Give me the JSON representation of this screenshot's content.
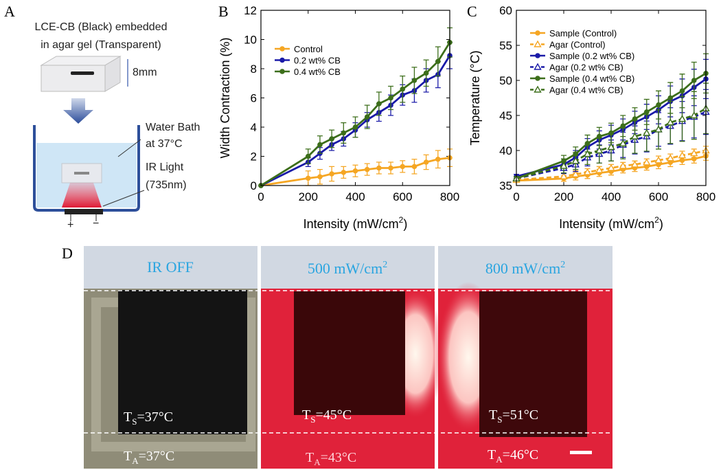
{
  "panel_labels": [
    "A",
    "B",
    "C",
    "D"
  ],
  "schematic": {
    "caption_1": "LCE-CB (Black) embedded",
    "caption_2": "in agar gel (Transparent)",
    "thickness": "8mm",
    "bath_1": "Water Bath",
    "bath_2": "at 37°C",
    "light_1": "IR Light",
    "light_2": "(735nm)",
    "plus": "+",
    "minus": "−"
  },
  "chart_data": [
    {
      "type": "line",
      "ylabel": "Width Contraction (%)",
      "xlabel": {
        "text": "Intensity (mW/cm",
        "sup": "2",
        "end": ")"
      },
      "x": [
        0,
        200,
        250,
        300,
        350,
        400,
        450,
        500,
        550,
        600,
        650,
        700,
        750,
        800
      ],
      "xlim": [
        0,
        800
      ],
      "xticks": [
        0,
        200,
        400,
        600,
        800
      ],
      "ylim": [
        0,
        12
      ],
      "yticks": [
        0,
        2,
        4,
        6,
        8,
        10,
        12
      ],
      "legend": "upper left",
      "series": [
        {
          "name": "Control",
          "color": "#f5a623",
          "marker": "circle",
          "dash": false,
          "values": [
            0,
            0.5,
            0.6,
            0.8,
            0.9,
            1.0,
            1.1,
            1.2,
            1.2,
            1.3,
            1.3,
            1.6,
            1.8,
            1.9
          ],
          "errors": [
            0,
            0.5,
            0.5,
            0.5,
            0.4,
            0.4,
            0.4,
            0.4,
            0.4,
            0.4,
            0.5,
            0.5,
            0.6,
            0.6
          ]
        },
        {
          "name": "0.2 wt% CB",
          "color": "#1a1aa8",
          "marker": "circle",
          "dash": false,
          "values": [
            0,
            1.6,
            2.2,
            2.8,
            3.2,
            3.8,
            4.5,
            5.0,
            5.5,
            6.2,
            6.5,
            7.2,
            7.6,
            8.9
          ],
          "errors": [
            0,
            0.3,
            0.4,
            0.4,
            0.5,
            0.5,
            0.5,
            0.6,
            0.7,
            0.7,
            0.8,
            0.8,
            0.9,
            0.9
          ]
        },
        {
          "name": "0.4 wt% CB",
          "color": "#3c6e1a",
          "marker": "circle",
          "dash": false,
          "values": [
            0,
            2.0,
            2.8,
            3.2,
            3.6,
            4.0,
            4.7,
            5.6,
            6.0,
            6.6,
            7.2,
            7.7,
            8.5,
            9.8
          ],
          "errors": [
            0,
            0.5,
            0.6,
            0.6,
            0.7,
            0.7,
            0.8,
            0.8,
            0.8,
            0.9,
            0.9,
            0.9,
            1.0,
            1.0
          ]
        }
      ]
    },
    {
      "type": "line",
      "ylabel": "Temperature (°C)",
      "xlabel": {
        "text": "Intensity (mW/cm",
        "sup": "2",
        "end": ")"
      },
      "x": [
        0,
        200,
        250,
        300,
        350,
        400,
        450,
        500,
        550,
        600,
        650,
        700,
        750,
        800
      ],
      "xlim": [
        0,
        800
      ],
      "xticks": [
        0,
        200,
        400,
        600,
        800
      ],
      "ylim": [
        35,
        60
      ],
      "yticks": [
        35,
        40,
        45,
        50,
        55,
        60
      ],
      "legend": "upper left",
      "series": [
        {
          "name": "Sample (Control)",
          "color": "#f5a623",
          "marker": "circle",
          "dash": false,
          "values": [
            35.7,
            36.0,
            36.3,
            36.5,
            36.8,
            37.0,
            37.3,
            37.5,
            37.7,
            38.0,
            38.3,
            38.6,
            38.8,
            39.2
          ],
          "errors": [
            0.2,
            0.4,
            0.5,
            0.5,
            0.5,
            0.5,
            0.5,
            0.5,
            0.5,
            0.6,
            0.6,
            0.6,
            0.6,
            0.6
          ]
        },
        {
          "name": "Agar (Control)",
          "color": "#f5a623",
          "marker": "triangle-open",
          "dash": true,
          "values": [
            35.8,
            36.3,
            36.6,
            36.9,
            37.2,
            37.5,
            37.8,
            38.0,
            38.3,
            38.6,
            38.9,
            39.3,
            39.6,
            40.0
          ],
          "errors": [
            0.2,
            0.4,
            0.5,
            0.5,
            0.5,
            0.5,
            0.5,
            0.5,
            0.5,
            0.6,
            0.6,
            0.6,
            0.6,
            0.6
          ]
        },
        {
          "name": "Sample (0.2 wt% CB)",
          "color": "#1a1aa8",
          "marker": "circle",
          "dash": false,
          "values": [
            36.3,
            38.0,
            39.0,
            40.5,
            41.5,
            42.2,
            43.0,
            44.0,
            44.8,
            45.8,
            47.0,
            47.8,
            49.0,
            50.2
          ],
          "errors": [
            0.3,
            0.8,
            1.0,
            1.2,
            1.3,
            1.4,
            1.5,
            1.6,
            1.8,
            2.0,
            2.2,
            2.4,
            2.6,
            2.8
          ]
        },
        {
          "name": "Agar (0.2 wt% CB)",
          "color": "#1a1aa8",
          "marker": "triangle-open",
          "dash": true,
          "values": [
            36.0,
            37.5,
            38.0,
            39.0,
            39.5,
            40.0,
            40.8,
            41.5,
            42.0,
            43.0,
            43.5,
            44.2,
            44.8,
            45.5
          ],
          "errors": [
            0.3,
            0.8,
            1.0,
            1.2,
            1.3,
            1.5,
            1.8,
            2.0,
            2.2,
            2.4,
            2.6,
            2.8,
            3.0,
            3.2
          ]
        },
        {
          "name": "Sample (0.4 wt% CB)",
          "color": "#3c6e1a",
          "marker": "circle",
          "dash": false,
          "values": [
            36.0,
            38.5,
            39.5,
            41.0,
            42.0,
            42.5,
            43.5,
            44.5,
            45.5,
            46.5,
            47.5,
            48.5,
            50.0,
            51.0
          ],
          "errors": [
            0.3,
            0.8,
            1.0,
            1.2,
            1.3,
            1.4,
            1.5,
            1.6,
            1.8,
            2.0,
            2.2,
            2.4,
            2.6,
            2.8
          ]
        },
        {
          "name": "Agar (0.4 wt% CB)",
          "color": "#3c6e1a",
          "marker": "triangle-open",
          "dash": true,
          "values": [
            36.0,
            37.8,
            38.5,
            39.5,
            40.0,
            40.5,
            41.0,
            42.0,
            42.5,
            43.0,
            44.0,
            44.5,
            45.0,
            46.0
          ],
          "errors": [
            0.3,
            1.0,
            1.2,
            1.5,
            1.8,
            2.0,
            2.2,
            2.4,
            2.6,
            2.8,
            3.0,
            3.2,
            3.4,
            3.6
          ]
        }
      ]
    }
  ],
  "photos": [
    {
      "title": {
        "text": "IR OFF"
      },
      "sample": {
        "text": "T",
        "sub": "S",
        "end": "=37°C"
      },
      "agar": {
        "text": "T",
        "sub": "A",
        "end": "=37°C"
      }
    },
    {
      "title": {
        "text": "500 mW/cm",
        "sup": "2"
      },
      "sample": {
        "text": "T",
        "sub": "S",
        "end": "=45°C"
      },
      "agar": {
        "text": "T",
        "sub": "A",
        "end": "=43°C"
      }
    },
    {
      "title": {
        "text": "800 mW/cm",
        "sup": "2"
      },
      "sample": {
        "text": "T",
        "sub": "S",
        "end": "=51°C"
      },
      "agar": {
        "text": "T",
        "sub": "A",
        "end": "=46°C"
      }
    }
  ]
}
